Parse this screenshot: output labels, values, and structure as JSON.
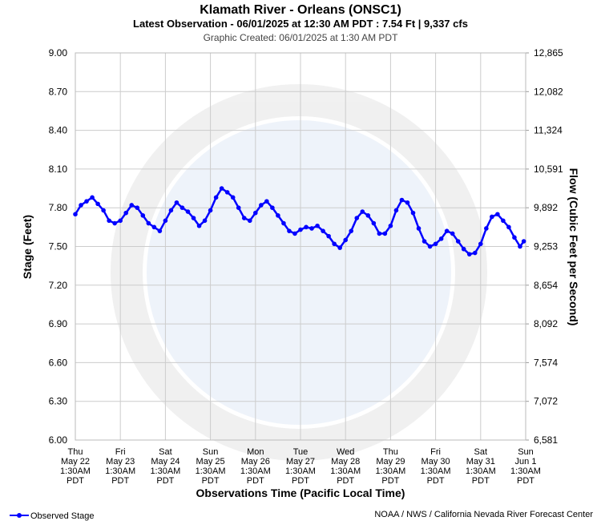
{
  "chart_data": {
    "type": "line",
    "title": "Klamath River - Orleans (ONSC1)",
    "subtitle": "Latest Observation - 06/01/2025 at 12:30 AM PDT : 7.54 Ft | 9,337 cfs",
    "note": "Graphic Created: 06/01/2025 at 1:30 AM PDT",
    "ylabel": "Stage (Feet)",
    "y2label": "Flow (Cubic Feet per Second)",
    "xlabel": "Observations Time (Pacific Local Time)",
    "credit": "NOAA / NWS / California Nevada River Forecast Center",
    "grid": true,
    "legend": "bottom-left",
    "ylim": [
      6,
      9
    ],
    "yticks": [
      {
        "value": 6,
        "label": "6.00"
      },
      {
        "value": 6.3,
        "label": "6.30"
      },
      {
        "value": 6.6,
        "label": "6.60"
      },
      {
        "value": 6.9,
        "label": "6.90"
      },
      {
        "value": 7.2,
        "label": "7.20"
      },
      {
        "value": 7.5,
        "label": "7.50"
      },
      {
        "value": 7.8,
        "label": "7.80"
      },
      {
        "value": 8.1,
        "label": "8.10"
      },
      {
        "value": 8.4,
        "label": "8.40"
      },
      {
        "value": 8.7,
        "label": "8.70"
      },
      {
        "value": 9,
        "label": "9.00"
      }
    ],
    "y2ticks": [
      {
        "value": 6581,
        "label": "6,581"
      },
      {
        "value": 7072,
        "label": "7,072"
      },
      {
        "value": 7574,
        "label": "7,574"
      },
      {
        "value": 8092,
        "label": "8,092"
      },
      {
        "value": 8654,
        "label": "8,654"
      },
      {
        "value": 9253,
        "label": "9,253"
      },
      {
        "value": 9892,
        "label": "9,892"
      },
      {
        "value": 10591,
        "label": "10,591"
      },
      {
        "value": 11324,
        "label": "11,324"
      },
      {
        "value": 12082,
        "label": "12,082"
      },
      {
        "value": 12865,
        "label": "12,865"
      }
    ],
    "xlim": [
      "2025-05-22T01:30",
      "2025-06-01T01:30"
    ],
    "xticks": [
      {
        "value": "2025-05-22T01:30",
        "label": [
          "Thu",
          "May 22",
          "1:30AM",
          "PDT"
        ]
      },
      {
        "value": "2025-05-23T01:30",
        "label": [
          "Fri",
          "May 23",
          "1:30AM",
          "PDT"
        ]
      },
      {
        "value": "2025-05-24T01:30",
        "label": [
          "Sat",
          "May 24",
          "1:30AM",
          "PDT"
        ]
      },
      {
        "value": "2025-05-25T01:30",
        "label": [
          "Sun",
          "May 25",
          "1:30AM",
          "PDT"
        ]
      },
      {
        "value": "2025-05-26T01:30",
        "label": [
          "Mon",
          "May 26",
          "1:30AM",
          "PDT"
        ]
      },
      {
        "value": "2025-05-27T01:30",
        "label": [
          "Tue",
          "May 27",
          "1:30AM",
          "PDT"
        ]
      },
      {
        "value": "2025-05-28T01:30",
        "label": [
          "Wed",
          "May 28",
          "1:30AM",
          "PDT"
        ]
      },
      {
        "value": "2025-05-29T01:30",
        "label": [
          "Thu",
          "May 29",
          "1:30AM",
          "PDT"
        ]
      },
      {
        "value": "2025-05-30T01:30",
        "label": [
          "Fri",
          "May 30",
          "1:30AM",
          "PDT"
        ]
      },
      {
        "value": "2025-05-31T01:30",
        "label": [
          "Sat",
          "May 31",
          "1:30AM",
          "PDT"
        ]
      },
      {
        "value": "2025-06-01T01:30",
        "label": [
          "Sun",
          "Jun 1",
          "1:30AM",
          "PDT"
        ]
      }
    ],
    "series": [
      {
        "name": "Observed Stage",
        "color": "#0000ff",
        "x": [
          "2025-05-22T01:30",
          "2025-05-22T04:30",
          "2025-05-22T07:30",
          "2025-05-22T10:30",
          "2025-05-22T13:30",
          "2025-05-22T16:30",
          "2025-05-22T19:30",
          "2025-05-22T22:30",
          "2025-05-23T01:30",
          "2025-05-23T04:30",
          "2025-05-23T07:30",
          "2025-05-23T10:30",
          "2025-05-23T13:30",
          "2025-05-23T16:30",
          "2025-05-23T19:30",
          "2025-05-23T22:30",
          "2025-05-24T01:30",
          "2025-05-24T04:30",
          "2025-05-24T07:30",
          "2025-05-24T10:30",
          "2025-05-24T13:30",
          "2025-05-24T16:30",
          "2025-05-24T19:30",
          "2025-05-24T22:30",
          "2025-05-25T01:30",
          "2025-05-25T04:30",
          "2025-05-25T07:30",
          "2025-05-25T10:30",
          "2025-05-25T13:30",
          "2025-05-25T16:30",
          "2025-05-25T19:30",
          "2025-05-25T22:30",
          "2025-05-26T01:30",
          "2025-05-26T04:30",
          "2025-05-26T07:30",
          "2025-05-26T10:30",
          "2025-05-26T13:30",
          "2025-05-26T16:30",
          "2025-05-26T19:30",
          "2025-05-26T22:30",
          "2025-05-27T01:30",
          "2025-05-27T04:30",
          "2025-05-27T07:30",
          "2025-05-27T10:30",
          "2025-05-27T13:30",
          "2025-05-27T16:30",
          "2025-05-27T19:30",
          "2025-05-27T22:30",
          "2025-05-28T01:30",
          "2025-05-28T04:30",
          "2025-05-28T07:30",
          "2025-05-28T10:30",
          "2025-05-28T13:30",
          "2025-05-28T16:30",
          "2025-05-28T19:30",
          "2025-05-28T22:30",
          "2025-05-29T01:30",
          "2025-05-29T04:30",
          "2025-05-29T07:30",
          "2025-05-29T10:30",
          "2025-05-29T13:30",
          "2025-05-29T16:30",
          "2025-05-29T19:30",
          "2025-05-29T22:30",
          "2025-05-30T01:30",
          "2025-05-30T04:30",
          "2025-05-30T07:30",
          "2025-05-30T10:30",
          "2025-05-30T13:30",
          "2025-05-30T16:30",
          "2025-05-30T19:30",
          "2025-05-30T22:30",
          "2025-05-31T01:30",
          "2025-05-31T04:30",
          "2025-05-31T07:30",
          "2025-05-31T10:30",
          "2025-05-31T13:30",
          "2025-05-31T16:30",
          "2025-05-31T19:30",
          "2025-05-31T22:30",
          "2025-06-01T00:30"
        ],
        "values": [
          7.75,
          7.82,
          7.85,
          7.88,
          7.83,
          7.78,
          7.7,
          7.68,
          7.7,
          7.76,
          7.82,
          7.8,
          7.74,
          7.68,
          7.65,
          7.62,
          7.7,
          7.78,
          7.84,
          7.8,
          7.77,
          7.72,
          7.66,
          7.7,
          7.78,
          7.88,
          7.95,
          7.92,
          7.88,
          7.8,
          7.72,
          7.7,
          7.76,
          7.82,
          7.85,
          7.8,
          7.74,
          7.68,
          7.62,
          7.6,
          7.63,
          7.65,
          7.64,
          7.66,
          7.62,
          7.58,
          7.52,
          7.49,
          7.55,
          7.62,
          7.72,
          7.77,
          7.74,
          7.68,
          7.6,
          7.6,
          7.66,
          7.78,
          7.86,
          7.84,
          7.76,
          7.64,
          7.54,
          7.5,
          7.52,
          7.56,
          7.62,
          7.6,
          7.54,
          7.48,
          7.44,
          7.45,
          7.52,
          7.64,
          7.73,
          7.75,
          7.7,
          7.65,
          7.57,
          7.5,
          7.54
        ]
      }
    ]
  }
}
